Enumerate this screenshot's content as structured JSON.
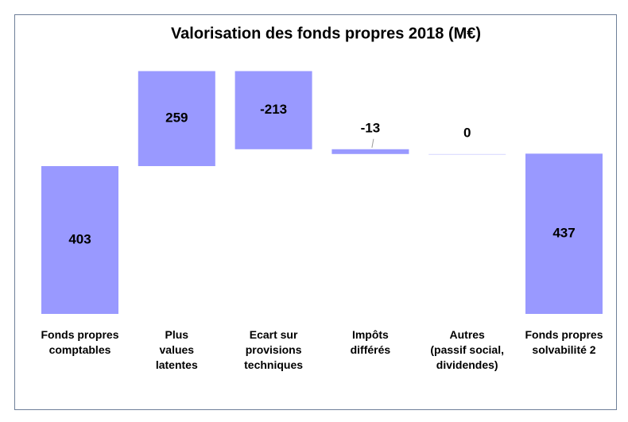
{
  "chart_data": {
    "type": "waterfall",
    "title": "Valorisation des fonds propres 2018 (M€)",
    "categories": [
      "Fonds propres\ncomptables",
      "Plus\nvalues\nlatentes",
      "Ecart sur\nprovisions\ntechniques",
      "Impôts\ndifférés",
      "Autres\n(passif social,\ndividendes)",
      "Fonds propres\nsolvabilité 2"
    ],
    "values": [
      403,
      259,
      -213,
      -13,
      0,
      437
    ],
    "color": "#9999ff"
  }
}
